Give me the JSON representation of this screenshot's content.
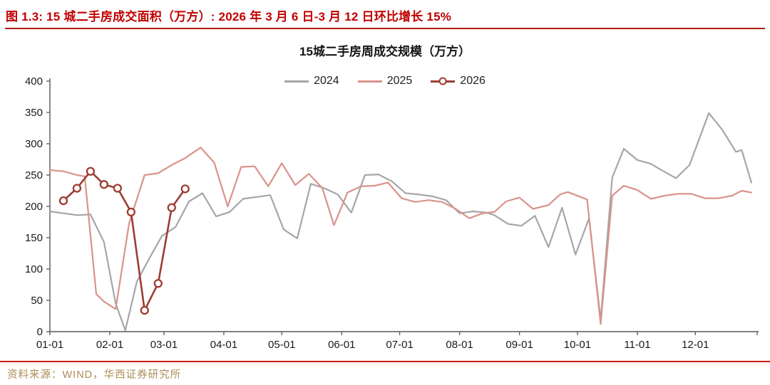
{
  "header": {
    "title": "图 1.3:  15 城二手房成交面积（万方）:  2026 年 3 月 6 日-3 月 12 日环比增长 15%"
  },
  "footer": {
    "source": "资料来源：WIND，华西证券研究所"
  },
  "colors": {
    "accent_red": "#C00000",
    "header_rule": "#B01F16",
    "source_rule": "#CC1A10",
    "source_gold": "#AE8D55",
    "axis": "#595959",
    "tick_text": "#1A1A1A",
    "series_2024": "#A6A6A6",
    "series_2025": "#D9938B",
    "series_2026": "#9C3D32"
  },
  "chart_data": {
    "type": "line",
    "title": "15城二手房周成交规模（万方）",
    "ylim": [
      0,
      400
    ],
    "y_ticks": [
      0,
      50,
      100,
      150,
      200,
      250,
      300,
      350,
      400
    ],
    "x_domain": [
      0,
      366
    ],
    "x_ticks": [
      {
        "day": 0,
        "label": "01-01"
      },
      {
        "day": 31,
        "label": "02-01"
      },
      {
        "day": 59,
        "label": "03-01"
      },
      {
        "day": 90,
        "label": "04-01"
      },
      {
        "day": 120,
        "label": "05-01"
      },
      {
        "day": 151,
        "label": "06-01"
      },
      {
        "day": 181,
        "label": "07-01"
      },
      {
        "day": 212,
        "label": "08-01"
      },
      {
        "day": 243,
        "label": "09-01"
      },
      {
        "day": 273,
        "label": "10-01"
      },
      {
        "day": 304,
        "label": "11-01"
      },
      {
        "day": 334,
        "label": "12-01"
      },
      {
        "day": 366,
        "label": ""
      }
    ],
    "grid": false,
    "legend_position": "top-center",
    "series": [
      {
        "name": "2024",
        "color": "#A6A6A6",
        "marker": false,
        "points": [
          [
            0,
            192
          ],
          [
            7,
            189
          ],
          [
            14,
            186
          ],
          [
            21,
            187
          ],
          [
            28,
            143
          ],
          [
            34,
            45
          ],
          [
            39,
            2
          ],
          [
            45,
            80
          ],
          [
            52,
            120
          ],
          [
            58,
            153
          ],
          [
            65,
            167
          ],
          [
            72,
            208
          ],
          [
            79,
            221
          ],
          [
            86,
            184
          ],
          [
            93,
            191
          ],
          [
            100,
            212
          ],
          [
            107,
            215
          ],
          [
            114,
            218
          ],
          [
            121,
            163
          ],
          [
            128,
            149
          ],
          [
            135,
            236
          ],
          [
            142,
            229
          ],
          [
            149,
            219
          ],
          [
            156,
            190
          ],
          [
            163,
            250
          ],
          [
            170,
            251
          ],
          [
            177,
            240
          ],
          [
            184,
            221
          ],
          [
            191,
            219
          ],
          [
            198,
            216
          ],
          [
            205,
            210
          ],
          [
            212,
            189
          ],
          [
            219,
            192
          ],
          [
            226,
            190
          ],
          [
            230,
            186
          ],
          [
            237,
            172
          ],
          [
            244,
            169
          ],
          [
            251,
            185
          ],
          [
            258,
            135
          ],
          [
            265,
            198
          ],
          [
            272,
            123
          ],
          [
            279,
            181
          ],
          [
            285,
            19
          ],
          [
            291,
            246
          ],
          [
            297,
            292
          ],
          [
            304,
            274
          ],
          [
            311,
            268
          ],
          [
            317,
            257
          ],
          [
            324,
            245
          ],
          [
            331,
            266
          ],
          [
            341,
            349
          ],
          [
            348,
            322
          ],
          [
            355,
            287
          ],
          [
            358,
            290
          ],
          [
            363,
            238
          ]
        ]
      },
      {
        "name": "2025",
        "color": "#D9938B",
        "marker": false,
        "points": [
          [
            0,
            258
          ],
          [
            7,
            256
          ],
          [
            14,
            250
          ],
          [
            18,
            248
          ],
          [
            24,
            60
          ],
          [
            28,
            48
          ],
          [
            34,
            36
          ],
          [
            41,
            173
          ],
          [
            49,
            250
          ],
          [
            56,
            253
          ],
          [
            63,
            266
          ],
          [
            70,
            277
          ],
          [
            78,
            294
          ],
          [
            85,
            270
          ],
          [
            92,
            200
          ],
          [
            99,
            263
          ],
          [
            106,
            264
          ],
          [
            113,
            232
          ],
          [
            120,
            269
          ],
          [
            127,
            234
          ],
          [
            134,
            252
          ],
          [
            141,
            229
          ],
          [
            147,
            170
          ],
          [
            154,
            222
          ],
          [
            161,
            232
          ],
          [
            168,
            233
          ],
          [
            175,
            238
          ],
          [
            182,
            213
          ],
          [
            189,
            207
          ],
          [
            196,
            210
          ],
          [
            203,
            207
          ],
          [
            210,
            196
          ],
          [
            217,
            181
          ],
          [
            224,
            189
          ],
          [
            230,
            191
          ],
          [
            236,
            208
          ],
          [
            243,
            214
          ],
          [
            250,
            196
          ],
          [
            258,
            202
          ],
          [
            264,
            219
          ],
          [
            268,
            223
          ],
          [
            278,
            211
          ],
          [
            285,
            12
          ],
          [
            291,
            217
          ],
          [
            297,
            233
          ],
          [
            304,
            226
          ],
          [
            311,
            212
          ],
          [
            318,
            217
          ],
          [
            325,
            220
          ],
          [
            332,
            220
          ],
          [
            339,
            213
          ],
          [
            346,
            213
          ],
          [
            353,
            217
          ],
          [
            358,
            225
          ],
          [
            363,
            222
          ]
        ]
      },
      {
        "name": "2026",
        "color": "#9C3D32",
        "marker": true,
        "points": [
          [
            7,
            209
          ],
          [
            14,
            229
          ],
          [
            21,
            256
          ],
          [
            28,
            235
          ],
          [
            35,
            229
          ],
          [
            42,
            191
          ],
          [
            49,
            34
          ],
          [
            56,
            77
          ],
          [
            63,
            198
          ],
          [
            70,
            228
          ]
        ]
      }
    ]
  }
}
